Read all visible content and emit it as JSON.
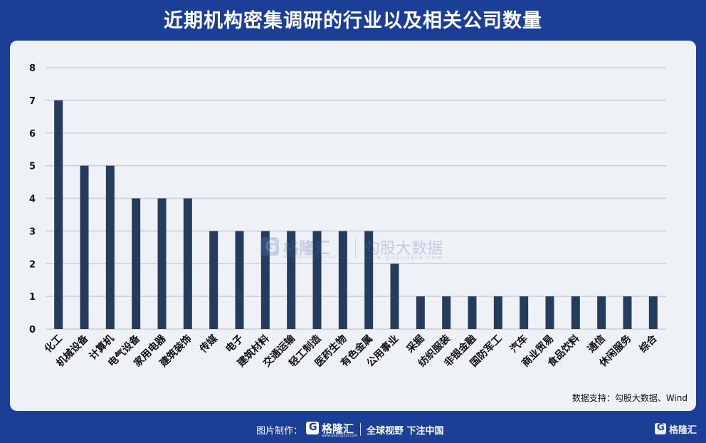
{
  "title": "近期机构密集调研的行业以及相关公司数量",
  "colors": {
    "background": "#1b3f97",
    "card": "#eef1f6",
    "bar": "#253c5d",
    "grid": "#c9cfd8"
  },
  "watermark": {
    "brand": "格隆汇",
    "brand_url": "www.gelonghui.com",
    "product": "勾股大数据",
    "product_url": "www.gogudata.com"
  },
  "source": "数据支持：勾股大数据、Wind",
  "footer": {
    "credit": "图片制作：",
    "brand": "格隆汇",
    "brand_url": "www.gelonghui.com",
    "slogan": "全球视野 下注中国",
    "corner_brand": "格隆汇"
  },
  "chart_data": {
    "type": "bar",
    "title": "近期机构密集调研的行业以及相关公司数量",
    "xlabel": "",
    "ylabel": "",
    "ylim": [
      0,
      8
    ],
    "yticks": [
      0,
      1,
      2,
      3,
      4,
      5,
      6,
      7,
      8
    ],
    "grid": true,
    "categories": [
      "化工",
      "机械设备",
      "计算机",
      "电气设备",
      "家用电器",
      "建筑装饰",
      "传媒",
      "电子",
      "建筑材料",
      "交通运输",
      "轻工制造",
      "医药生物",
      "有色金属",
      "公用事业",
      "采掘",
      "纺织服装",
      "非银金融",
      "国防军工",
      "汽车",
      "商业贸易",
      "食品饮料",
      "通信",
      "休闲服务",
      "综合"
    ],
    "values": [
      7,
      5,
      5,
      4,
      4,
      4,
      3,
      3,
      3,
      3,
      3,
      3,
      3,
      2,
      1,
      1,
      1,
      1,
      1,
      1,
      1,
      1,
      1,
      1
    ]
  }
}
